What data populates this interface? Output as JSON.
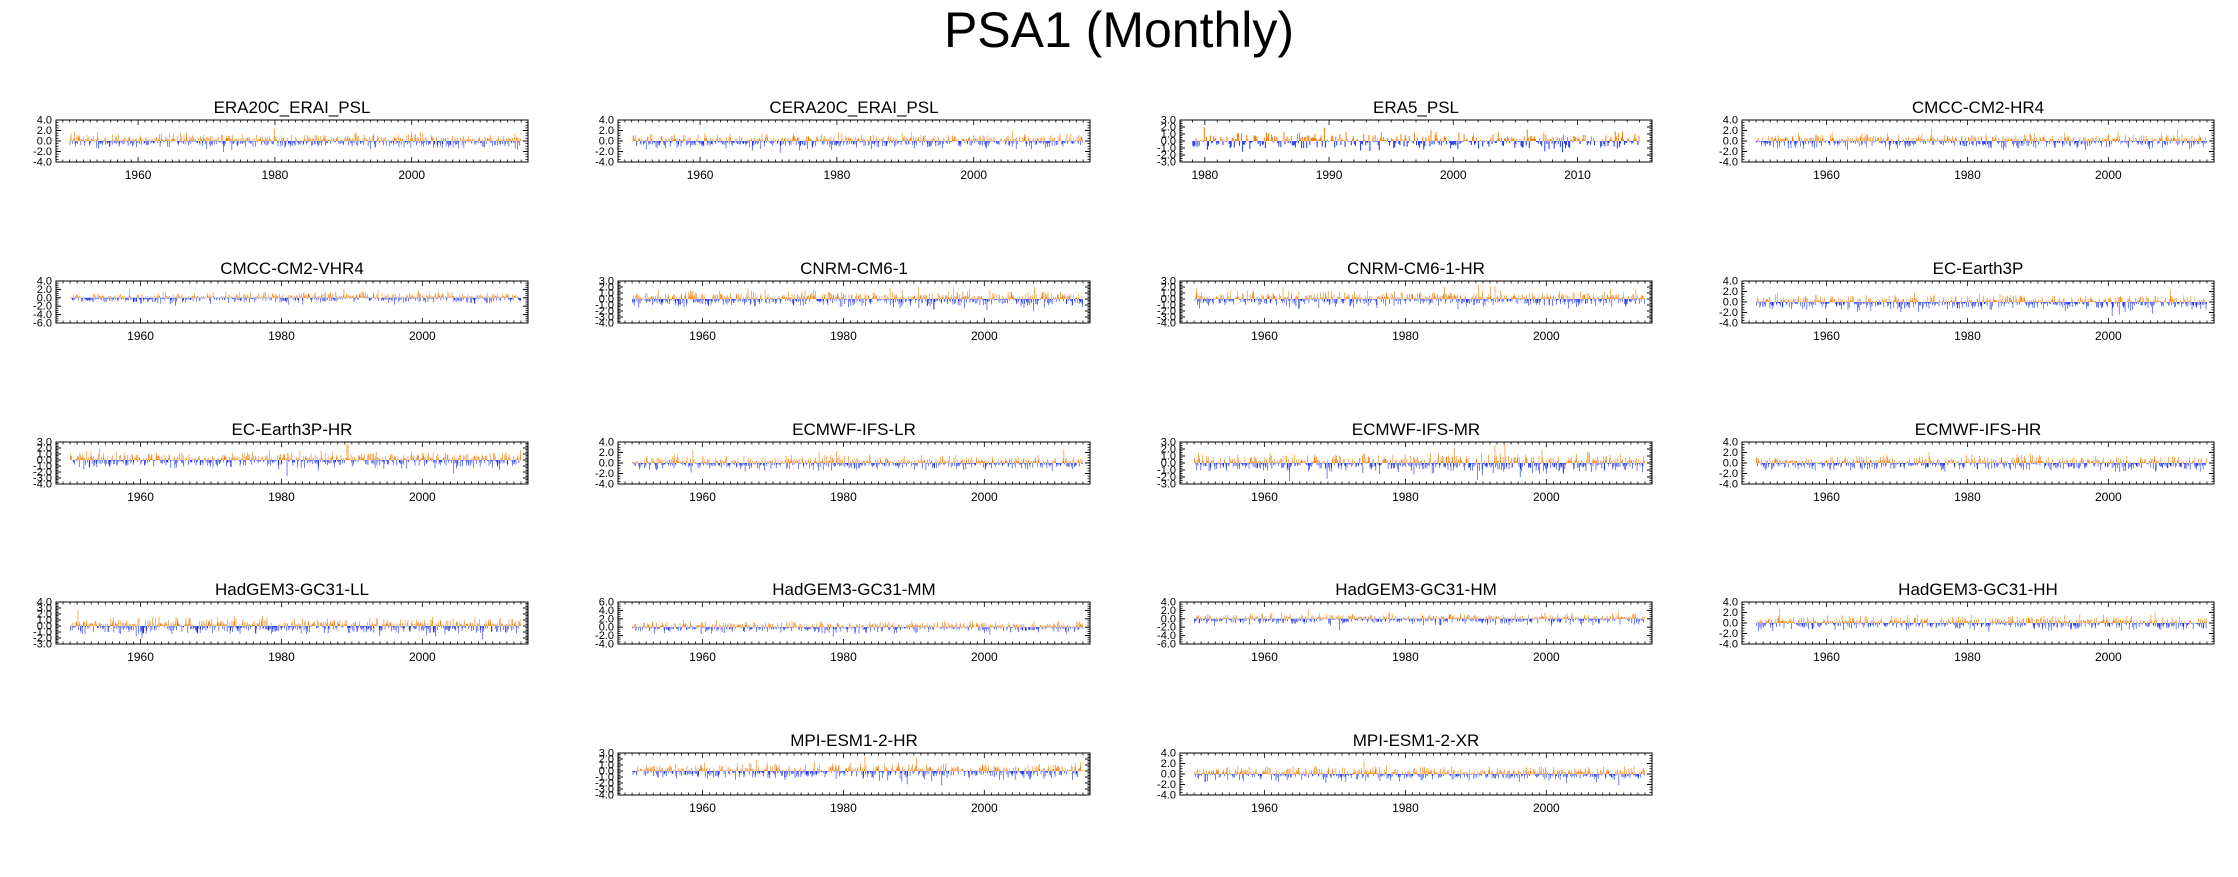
{
  "title": "PSA1 (Monthly)",
  "colors": {
    "positive": "#f07d0b",
    "negative": "#1a2ee6",
    "axis": "#000000"
  },
  "chart_data": [
    {
      "type": "bar",
      "title": "ERA20C_ERAI_PSL",
      "x_start": 1950,
      "x_end": 2016,
      "xlim": [
        1948,
        2017
      ],
      "xticks": [
        1960,
        1980,
        2000
      ],
      "ylim": [
        -4.0,
        4.0
      ],
      "yticks": [
        -4.0,
        -2.0,
        0.0,
        2.0,
        4.0
      ],
      "pos_max": 2.3,
      "neg_min": -2.1,
      "seed": 11
    },
    {
      "type": "bar",
      "title": "CERA20C_ERAI_PSL",
      "x_start": 1950,
      "x_end": 2016,
      "xlim": [
        1948,
        2017
      ],
      "xticks": [
        1960,
        1980,
        2000
      ],
      "ylim": [
        -4.0,
        4.0
      ],
      "yticks": [
        -4.0,
        -2.0,
        0.0,
        2.0,
        4.0
      ],
      "pos_max": 2.5,
      "neg_min": -2.3,
      "seed": 12
    },
    {
      "type": "bar",
      "title": "ERA5_PSL",
      "x_start": 1979,
      "x_end": 2015,
      "xlim": [
        1978,
        2016
      ],
      "xticks": [
        1980,
        1990,
        2000,
        2010
      ],
      "ylim": [
        -3.0,
        3.0
      ],
      "yticks": [
        -3.0,
        -2.0,
        -1.0,
        0.0,
        1.0,
        2.0,
        3.0
      ],
      "pos_max": 2.4,
      "neg_min": -2.2,
      "seed": 13
    },
    {
      "type": "bar",
      "title": "CMCC-CM2-HR4",
      "x_start": 1950,
      "x_end": 2014,
      "xlim": [
        1948,
        2015
      ],
      "xticks": [
        1960,
        1980,
        2000
      ],
      "ylim": [
        -4.0,
        4.0
      ],
      "yticks": [
        -4.0,
        -2.0,
        0.0,
        2.0,
        4.0
      ],
      "pos_max": 2.6,
      "neg_min": -2.4,
      "seed": 14
    },
    {
      "type": "bar",
      "title": "CMCC-CM2-VHR4",
      "x_start": 1950,
      "x_end": 2014,
      "xlim": [
        1948,
        2015
      ],
      "xticks": [
        1960,
        1980,
        2000
      ],
      "ylim": [
        -6.0,
        4.0
      ],
      "yticks": [
        -6.0,
        -4.0,
        -2.0,
        0.0,
        2.0,
        4.0
      ],
      "pos_max": 2.4,
      "neg_min": -2.2,
      "seed": 15
    },
    {
      "type": "bar",
      "title": "CNRM-CM6-1",
      "x_start": 1950,
      "x_end": 2014,
      "xlim": [
        1948,
        2015
      ],
      "xticks": [
        1960,
        1980,
        2000
      ],
      "ylim": [
        -4.0,
        3.0
      ],
      "yticks": [
        -4.0,
        -3.0,
        -2.0,
        -1.0,
        0.0,
        1.0,
        2.0,
        3.0
      ],
      "pos_max": 2.5,
      "neg_min": -2.8,
      "seed": 16
    },
    {
      "type": "bar",
      "title": "CNRM-CM6-1-HR",
      "x_start": 1950,
      "x_end": 2014,
      "xlim": [
        1948,
        2015
      ],
      "xticks": [
        1960,
        1980,
        2000
      ],
      "ylim": [
        -4.0,
        3.0
      ],
      "yticks": [
        -4.0,
        -3.0,
        -2.0,
        -1.0,
        0.0,
        1.0,
        2.0,
        3.0
      ],
      "pos_max": 2.5,
      "neg_min": -3.0,
      "seed": 17
    },
    {
      "type": "bar",
      "title": "EC-Earth3P",
      "x_start": 1950,
      "x_end": 2014,
      "xlim": [
        1948,
        2015
      ],
      "xticks": [
        1960,
        1980,
        2000
      ],
      "ylim": [
        -4.0,
        4.0
      ],
      "yticks": [
        -4.0,
        -2.0,
        0.0,
        2.0,
        4.0
      ],
      "pos_max": 3.2,
      "neg_min": -3.3,
      "seed": 18
    },
    {
      "type": "bar",
      "title": "EC-Earth3P-HR",
      "x_start": 1950,
      "x_end": 2014,
      "xlim": [
        1948,
        2015
      ],
      "xticks": [
        1960,
        1980,
        2000
      ],
      "ylim": [
        -4.0,
        3.0
      ],
      "yticks": [
        -4.0,
        -3.0,
        -2.0,
        -1.0,
        0.0,
        1.0,
        2.0,
        3.0
      ],
      "pos_max": 2.6,
      "neg_min": -3.0,
      "seed": 19
    },
    {
      "type": "bar",
      "title": "ECMWF-IFS-LR",
      "x_start": 1950,
      "x_end": 2014,
      "xlim": [
        1948,
        2015
      ],
      "xticks": [
        1960,
        1980,
        2000
      ],
      "ylim": [
        -4.0,
        4.0
      ],
      "yticks": [
        -4.0,
        -2.0,
        0.0,
        2.0,
        4.0
      ],
      "pos_max": 2.6,
      "neg_min": -3.0,
      "seed": 20
    },
    {
      "type": "bar",
      "title": "ECMWF-IFS-MR",
      "x_start": 1950,
      "x_end": 2014,
      "xlim": [
        1948,
        2015
      ],
      "xticks": [
        1960,
        1980,
        2000
      ],
      "ylim": [
        -3.0,
        3.0
      ],
      "yticks": [
        -3.0,
        -2.0,
        -1.0,
        0.0,
        1.0,
        2.0,
        3.0
      ],
      "pos_max": 2.7,
      "neg_min": -2.6,
      "seed": 21
    },
    {
      "type": "bar",
      "title": "ECMWF-IFS-HR",
      "x_start": 1950,
      "x_end": 2014,
      "xlim": [
        1948,
        2015
      ],
      "xticks": [
        1960,
        1980,
        2000
      ],
      "ylim": [
        -4.0,
        4.0
      ],
      "yticks": [
        -4.0,
        -2.0,
        0.0,
        2.0,
        4.0
      ],
      "pos_max": 2.4,
      "neg_min": -2.4,
      "seed": 22
    },
    {
      "type": "bar",
      "title": "HadGEM3-GC31-LL",
      "x_start": 1950,
      "x_end": 2014,
      "xlim": [
        1948,
        2015
      ],
      "xticks": [
        1960,
        1980,
        2000
      ],
      "ylim": [
        -3.0,
        4.0
      ],
      "yticks": [
        -3.0,
        -2.0,
        -1.0,
        0.0,
        1.0,
        2.0,
        3.0,
        4.0
      ],
      "pos_max": 2.9,
      "neg_min": -2.8,
      "seed": 23
    },
    {
      "type": "bar",
      "title": "HadGEM3-GC31-MM",
      "x_start": 1950,
      "x_end": 2014,
      "xlim": [
        1948,
        2015
      ],
      "xticks": [
        1960,
        1980,
        2000
      ],
      "ylim": [
        -4.0,
        6.0
      ],
      "yticks": [
        -4.0,
        -2.0,
        0.0,
        2.0,
        4.0,
        6.0
      ],
      "pos_max": 2.4,
      "neg_min": -2.2,
      "seed": 24
    },
    {
      "type": "bar",
      "title": "HadGEM3-GC31-HM",
      "x_start": 1950,
      "x_end": 2014,
      "xlim": [
        1948,
        2015
      ],
      "xticks": [
        1960,
        1980,
        2000
      ],
      "ylim": [
        -6.0,
        4.0
      ],
      "yticks": [
        -6.0,
        -4.0,
        -2.0,
        0.0,
        2.0,
        4.0
      ],
      "pos_max": 2.4,
      "neg_min": -2.8,
      "seed": 25
    },
    {
      "type": "bar",
      "title": "HadGEM3-GC31-HH",
      "x_start": 1950,
      "x_end": 2014,
      "xlim": [
        1948,
        2015
      ],
      "xticks": [
        1960,
        1980,
        2000
      ],
      "ylim": [
        -4.0,
        4.0
      ],
      "yticks": [
        -4.0,
        -2.0,
        0.0,
        2.0,
        4.0
      ],
      "pos_max": 2.6,
      "neg_min": -3.0,
      "seed": 26
    },
    {
      "type": "bar",
      "title": "MPI-ESM1-2-HR",
      "x_start": 1950,
      "x_end": 2014,
      "xlim": [
        1948,
        2015
      ],
      "xticks": [
        1960,
        1980,
        2000
      ],
      "ylim": [
        -4.0,
        3.0
      ],
      "yticks": [
        -4.0,
        -3.0,
        -2.0,
        -1.0,
        0.0,
        1.0,
        2.0,
        3.0
      ],
      "pos_max": 2.6,
      "neg_min": -3.0,
      "seed": 27
    },
    {
      "type": "bar",
      "title": "MPI-ESM1-2-XR",
      "x_start": 1950,
      "x_end": 2014,
      "xlim": [
        1948,
        2015
      ],
      "xticks": [
        1960,
        1980,
        2000
      ],
      "ylim": [
        -4.0,
        4.0
      ],
      "yticks": [
        -4.0,
        -2.0,
        0.0,
        2.0,
        4.0
      ],
      "pos_max": 2.4,
      "neg_min": -3.0,
      "seed": 28
    }
  ]
}
